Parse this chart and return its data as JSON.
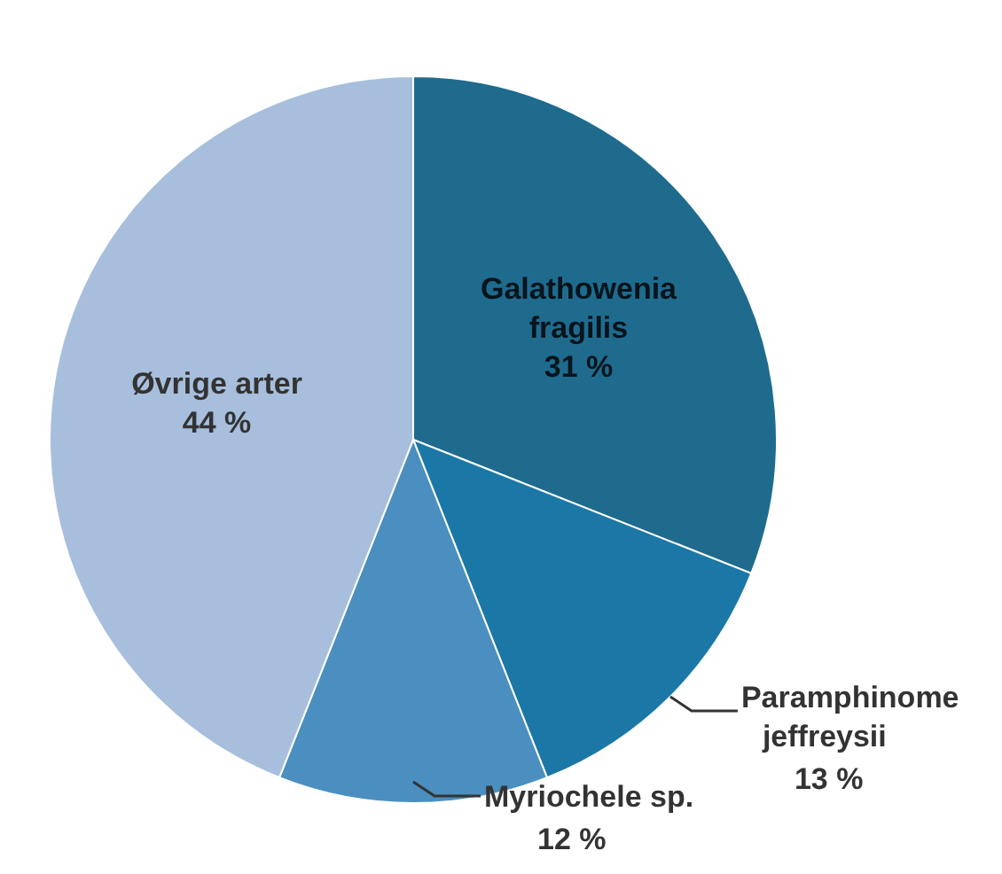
{
  "chart_data": {
    "type": "pie",
    "categories": [
      "Galathowenia fragilis",
      "Paramphinome jeffreysii",
      "Myriochele sp.",
      "Øvrige arter"
    ],
    "values": [
      31,
      13,
      12,
      44
    ],
    "colors": [
      "#1f6b8e",
      "#1b78a6",
      "#4a8fbf",
      "#a7bfdc"
    ],
    "value_labels": [
      "31 %",
      "13 %",
      "12 %",
      "44 %"
    ]
  }
}
